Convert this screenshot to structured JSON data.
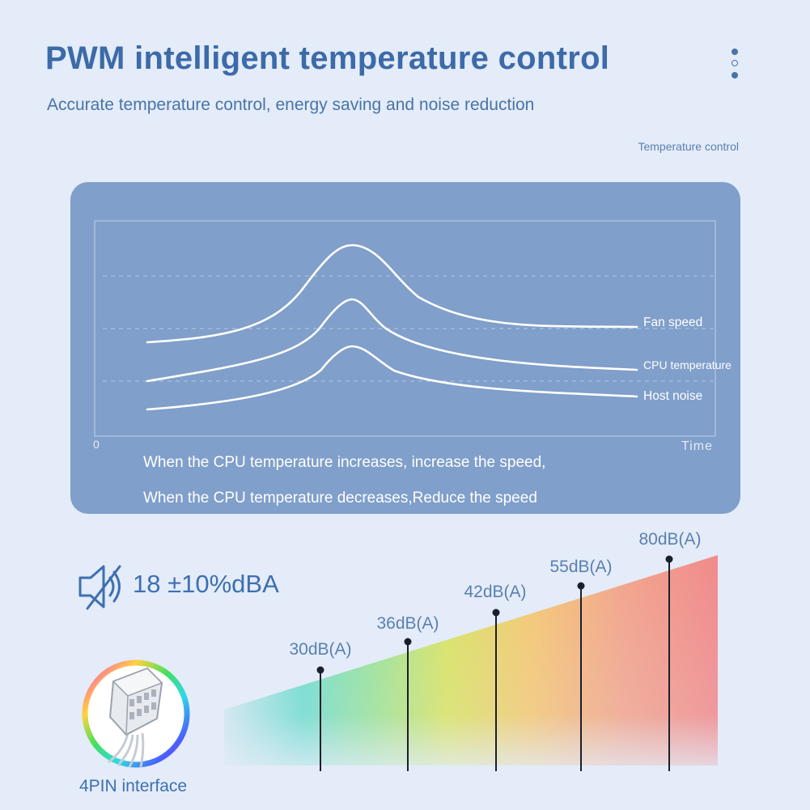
{
  "header": {
    "title": "PWM intelligent temperature control",
    "subtitle": "Accurate temperature control, energy saving and noise reduction",
    "menu_icon": "vertical-dots-icon"
  },
  "chart_label": "Temperature control",
  "chart_data": {
    "type": "line",
    "title": "",
    "xlabel": "Time",
    "ylabel": "",
    "x_origin_label": "0",
    "series": [
      {
        "name": "Fan speed"
      },
      {
        "name": "CPU temperature"
      },
      {
        "name": "Host noise"
      }
    ],
    "grid": true
  },
  "notes": [
    "When the CPU temperature increases, increase the speed,",
    "When the CPU temperature decreases,Reduce the speed"
  ],
  "noise": {
    "icon": "speaker-muted-icon",
    "value": "18 ±10%dBA"
  },
  "db_scale": {
    "labels": [
      "30dB(A)",
      "36dB(A)",
      "42dB(A)",
      "55dB(A)",
      "80dB(A)"
    ]
  },
  "interface": {
    "icon": "4pin-connector-icon",
    "label": "4PIN interface"
  },
  "colors": {
    "accent": "#3d6aa8",
    "panel": "#809fca",
    "background": "#e3ecf8"
  }
}
